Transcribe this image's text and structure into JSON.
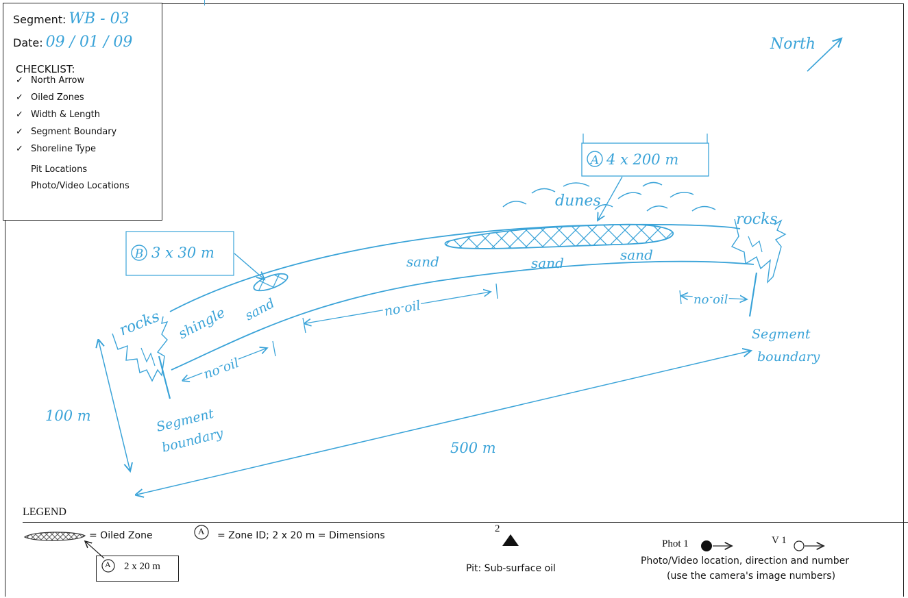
{
  "header": {
    "segment_label": "Segment:",
    "segment_value": "WB - 03",
    "date_label": "Date:",
    "date_value": "09 / 01 / 09",
    "checklist_title": "CHECKLIST:",
    "checklist_items": [
      {
        "label": "North Arrow",
        "checked": true
      },
      {
        "label": "Oiled Zones",
        "checked": true
      },
      {
        "label": "Width & Length",
        "checked": true
      },
      {
        "label": "Segment Boundary",
        "checked": true
      },
      {
        "label": "Shoreline Type",
        "checked": true
      },
      {
        "label": "Pit Locations",
        "checked": false
      },
      {
        "label": "Photo/Video Locations",
        "checked": false
      }
    ],
    "check_glyph": "✓"
  },
  "sketch": {
    "north": "North",
    "zone_a": {
      "id": "A",
      "dims": "4 x 200 m"
    },
    "zone_b": {
      "id": "B",
      "dims": "3 x 30 m"
    },
    "dunes": "dunes",
    "rocks_left": "rocks",
    "rocks_right": "rocks",
    "shingle": "shingle",
    "sand_labels": [
      "sand",
      "sand",
      "sand",
      "sand"
    ],
    "no_oil_labels": [
      "no oil",
      "no oil",
      "no oil"
    ],
    "segment_boundary_left": [
      "Segment",
      "boundary"
    ],
    "segment_boundary_right": [
      "Segment",
      "boundary"
    ],
    "width": "100 m",
    "length": "500 m"
  },
  "legend": {
    "title": "LEGEND",
    "oiled_zone": "= Oiled Zone",
    "zone_id_symbol": "A",
    "zone_id_text": "=   Zone ID; 2 x 20 m = Dimensions",
    "example_box": {
      "id": "A",
      "dims": "2 x 20 m"
    },
    "pit_number": "2",
    "pit_text": "Pit: Sub-surface oil",
    "photo_label": "Phot 1",
    "video_label": "V 1",
    "photo_text_1": "Photo/Video location, direction and number",
    "photo_text_2": "(use the camera's image numbers)"
  },
  "colors": {
    "ink": "#3aa3d8",
    "line": "#222222"
  }
}
